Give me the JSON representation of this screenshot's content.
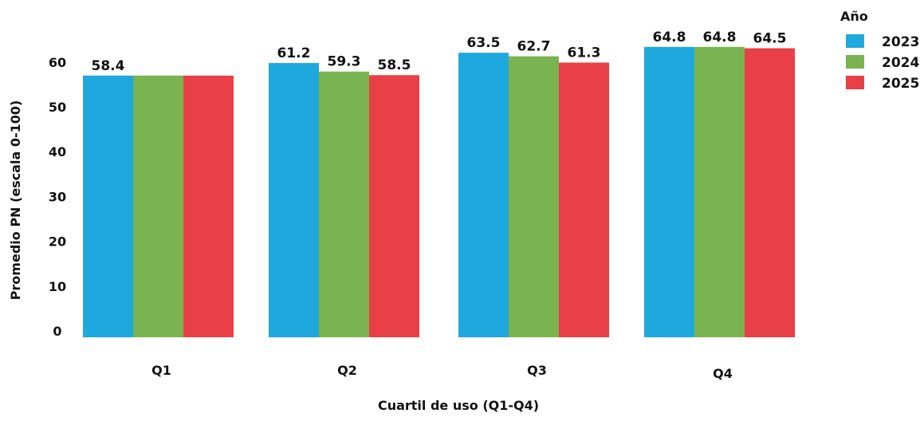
{
  "chart_data": {
    "type": "bar",
    "title": "",
    "xlabel": "Cuartil de uso (Q1-Q4)",
    "ylabel": "Promedio PN (escala 0-100)",
    "ylim": [
      0,
      70
    ],
    "yticks": [
      0,
      10,
      20,
      30,
      40,
      50,
      60
    ],
    "grid": false,
    "legend": {
      "title": "Año",
      "position": "top-right"
    },
    "categories": [
      "Q1",
      "Q2",
      "Q3",
      "Q4"
    ],
    "series": [
      {
        "name": "2023",
        "color": "#1fa8de",
        "values": [
          58.4,
          61.2,
          63.5,
          64.8
        ],
        "labels": [
          "58.4",
          "61.2",
          "63.5",
          "64.8"
        ]
      },
      {
        "name": "2024",
        "color": "#79b450",
        "values": [
          58.4,
          59.3,
          62.7,
          64.8
        ],
        "labels": [
          "",
          "59.3",
          "62.7",
          "64.8"
        ]
      },
      {
        "name": "2025",
        "color": "#e84046",
        "values": [
          58.4,
          58.5,
          61.3,
          64.5
        ],
        "labels": [
          "",
          "58.5",
          "61.3",
          "64.5"
        ]
      }
    ]
  }
}
